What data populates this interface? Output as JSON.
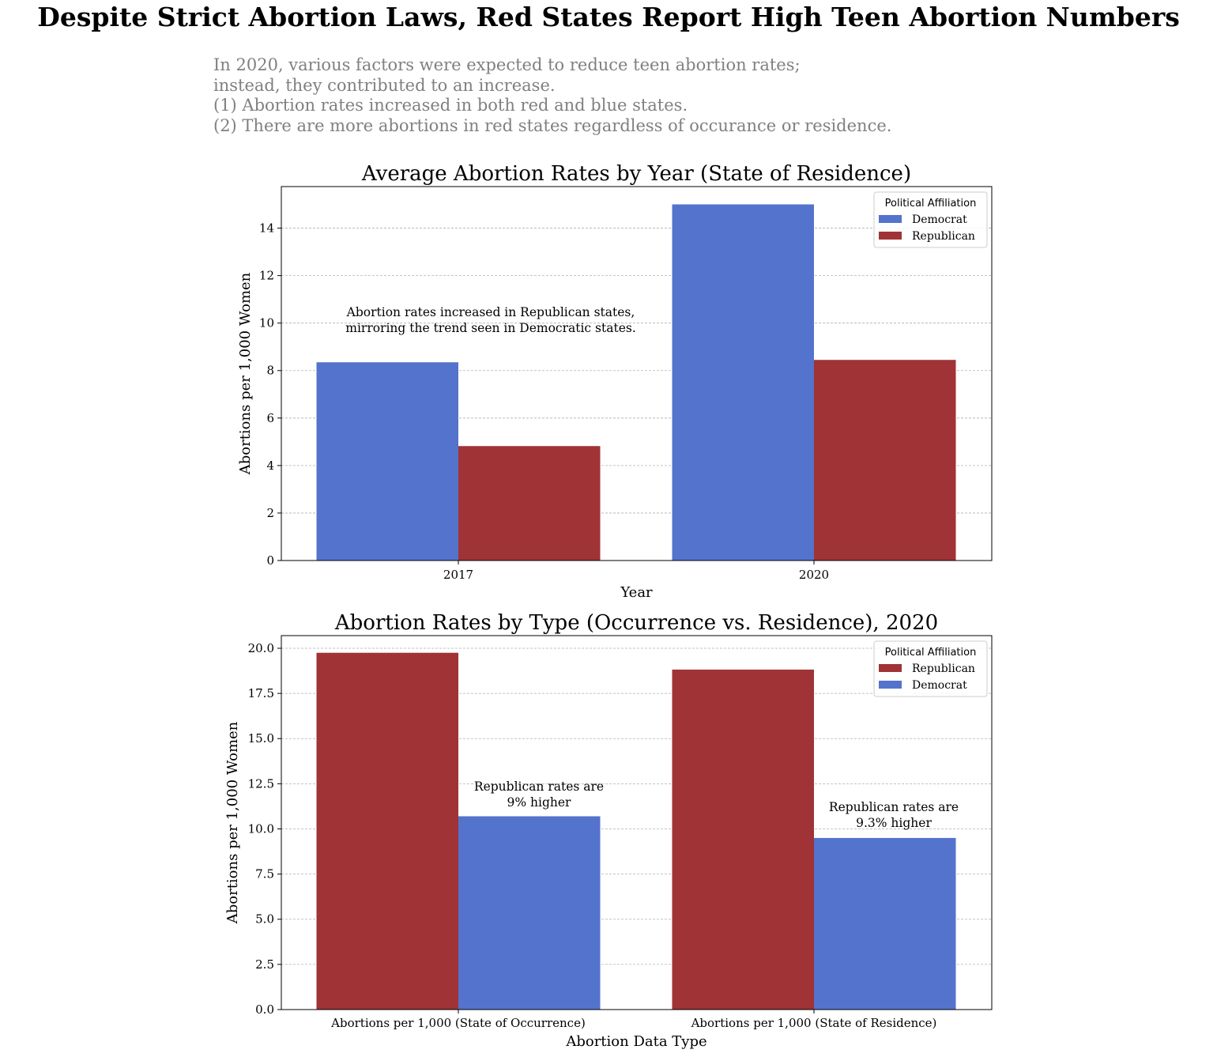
{
  "title": "Despite Strict Abortion Laws, Red States Report High Teen Abortion Numbers",
  "subtitle_lines": [
    "In 2020, various factors were expected to reduce teen abortion rates;",
    "instead, they contributed to an increase.",
    "(1) Abortion rates increased in both red and blue states.",
    "(2) There are more abortions in red states regardless of occurance or residence."
  ],
  "colors": {
    "Democrat": "#5473cc",
    "Republican": "#a03335"
  },
  "chart_data": [
    {
      "type": "bar",
      "title": "Average Abortion Rates by Year (State of Residence)",
      "xlabel": "Year",
      "ylabel": "Abortions per 1,000 Women",
      "categories": [
        "2017",
        "2020"
      ],
      "series": [
        {
          "name": "Democrat",
          "values": [
            8.35,
            15.0
          ]
        },
        {
          "name": "Republican",
          "values": [
            4.82,
            8.45
          ]
        }
      ],
      "ylim": [
        0,
        15.75
      ],
      "yticks": [
        0,
        2,
        4,
        6,
        8,
        10,
        12,
        14
      ],
      "ytick_labels": [
        "0",
        "2",
        "4",
        "6",
        "8",
        "10",
        "12",
        "14"
      ],
      "grid": "y",
      "legend": {
        "title": "Political Affiliation",
        "position": "top-right"
      },
      "annotations": [
        {
          "lines": [
            "Abortion rates increased in Republican states,",
            "mirroring the trend seen in Democratic states."
          ]
        }
      ]
    },
    {
      "type": "bar",
      "title": "Abortion Rates by Type (Occurrence vs. Residence), 2020",
      "xlabel": "Abortion Data Type",
      "ylabel": "Abortions per 1,000 Women",
      "categories": [
        "Abortions per 1,000 (State of Occurrence)",
        "Abortions per 1,000 (State of Residence)"
      ],
      "series": [
        {
          "name": "Republican",
          "values": [
            19.75,
            18.82
          ]
        },
        {
          "name": "Democrat",
          "values": [
            10.7,
            9.5
          ]
        }
      ],
      "ylim": [
        0,
        20.7
      ],
      "yticks": [
        0,
        2.5,
        5,
        7.5,
        10,
        12.5,
        15,
        17.5,
        20
      ],
      "ytick_labels": [
        "0.0",
        "2.5",
        "5.0",
        "7.5",
        "10.0",
        "12.5",
        "15.0",
        "17.5",
        "20.0"
      ],
      "grid": "y",
      "legend": {
        "title": "Political Affiliation",
        "position": "top-right"
      },
      "annotations": [
        {
          "lines": [
            "Republican rates are",
            "9% higher"
          ]
        },
        {
          "lines": [
            "Republican rates are",
            "9.3% higher"
          ]
        }
      ]
    }
  ]
}
